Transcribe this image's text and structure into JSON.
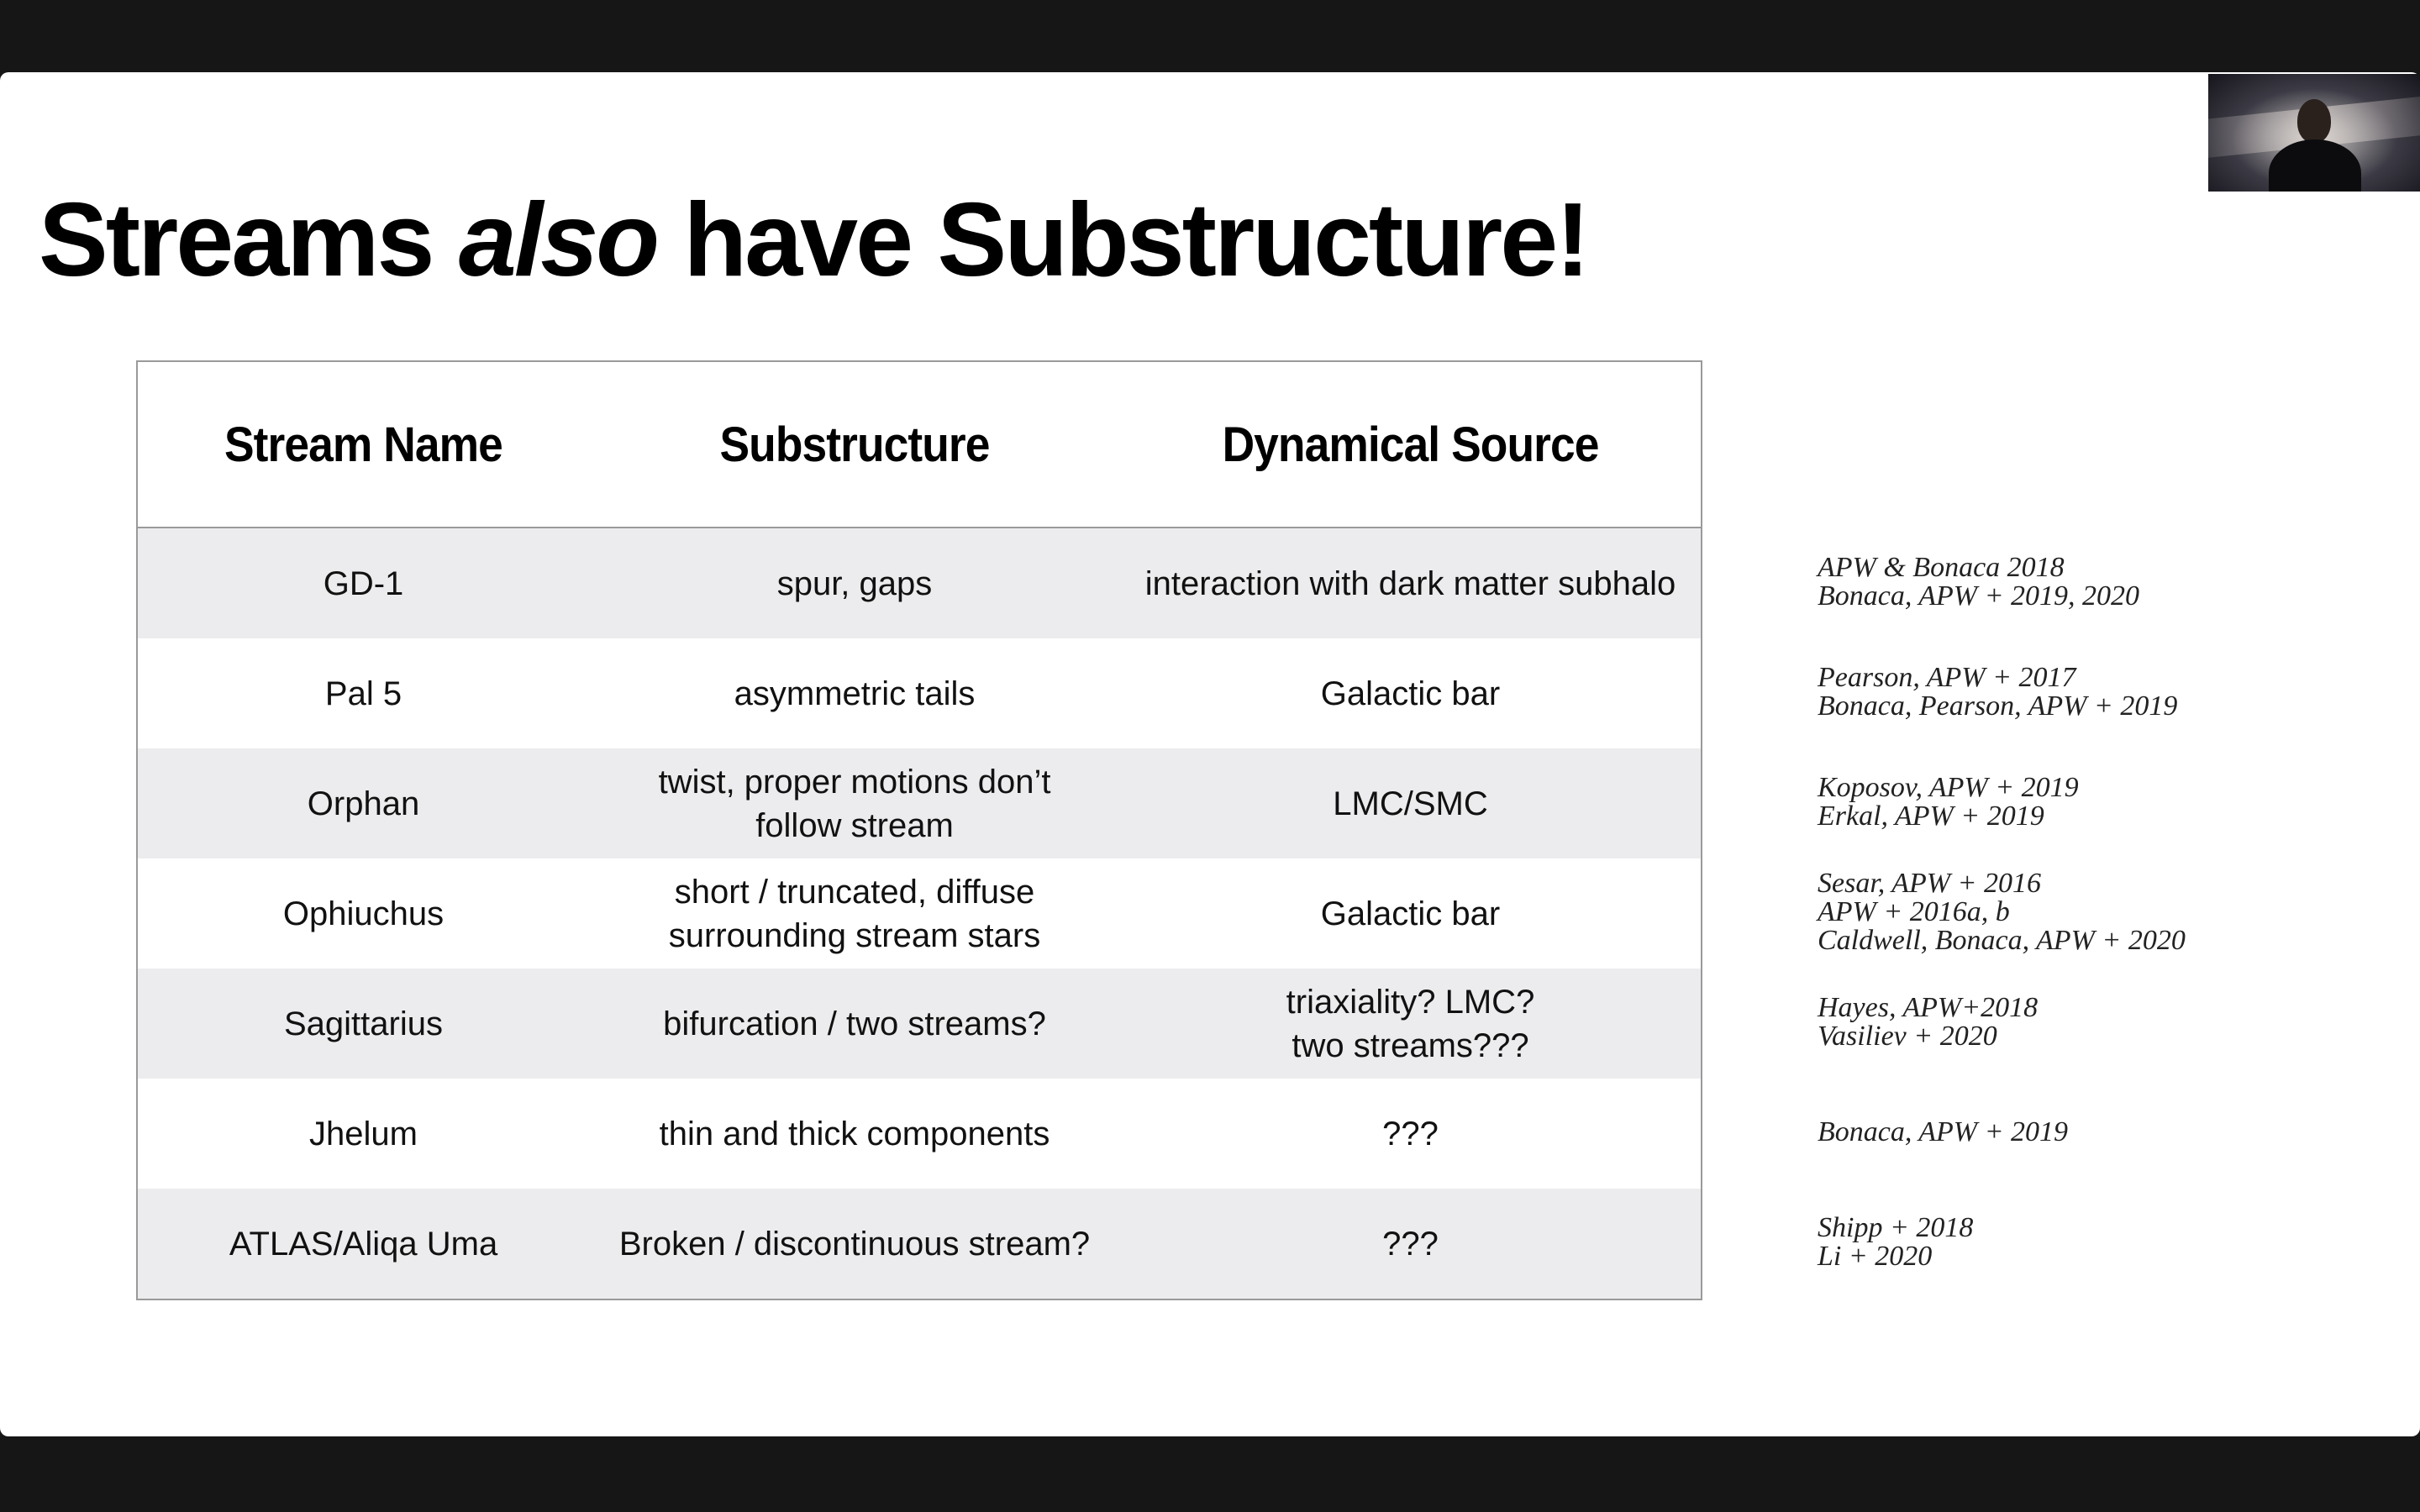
{
  "slide": {
    "title_pre": "Streams ",
    "title_em": "also",
    "title_post": " have Substructure!"
  },
  "table": {
    "headers": [
      "Stream Name",
      "Substructure",
      "Dynamical Source"
    ],
    "rows": [
      {
        "name": "GD-1",
        "substructure": [
          "spur, gaps"
        ],
        "source": [
          "interaction with dark matter subhalo"
        ]
      },
      {
        "name": "Pal 5",
        "substructure": [
          "asymmetric tails"
        ],
        "source": [
          "Galactic bar"
        ]
      },
      {
        "name": "Orphan",
        "substructure": [
          "twist, proper motions don’t",
          "follow stream"
        ],
        "source": [
          "LMC/SMC"
        ]
      },
      {
        "name": "Ophiuchus",
        "substructure": [
          "short / truncated, diffuse",
          "surrounding stream stars"
        ],
        "source": [
          "Galactic bar"
        ]
      },
      {
        "name": "Sagittarius",
        "substructure": [
          "bifurcation / two streams?"
        ],
        "source": [
          "triaxiality? LMC?",
          "two streams???"
        ]
      },
      {
        "name": "Jhelum",
        "substructure": [
          "thin and thick components"
        ],
        "source": [
          "???"
        ]
      },
      {
        "name": "ATLAS/Aliqa Uma",
        "substructure": [
          "Broken / discontinuous stream?"
        ],
        "source": [
          "???"
        ]
      }
    ]
  },
  "references": [
    [
      "APW & Bonaca 2018",
      "Bonaca, APW + 2019, 2020"
    ],
    [
      "Pearson, APW + 2017",
      "Bonaca, Pearson, APW + 2019"
    ],
    [
      "Koposov, APW + 2019",
      "Erkal, APW + 2019"
    ],
    [
      "Sesar, APW + 2016",
      "APW + 2016a, b",
      "Caldwell, Bonaca, APW + 2020"
    ],
    [
      "Hayes, APW+2018",
      "Vasiliev + 2020"
    ],
    [
      "Bonaca, APW + 2019"
    ],
    [
      "Shipp + 2018",
      "Li + 2020"
    ]
  ],
  "colors": {
    "row_shaded": "#ececee",
    "row_plain": "#ffffff",
    "border": "#9a9a9a"
  },
  "webcam": {
    "icon": "presenter-video-thumbnail"
  }
}
